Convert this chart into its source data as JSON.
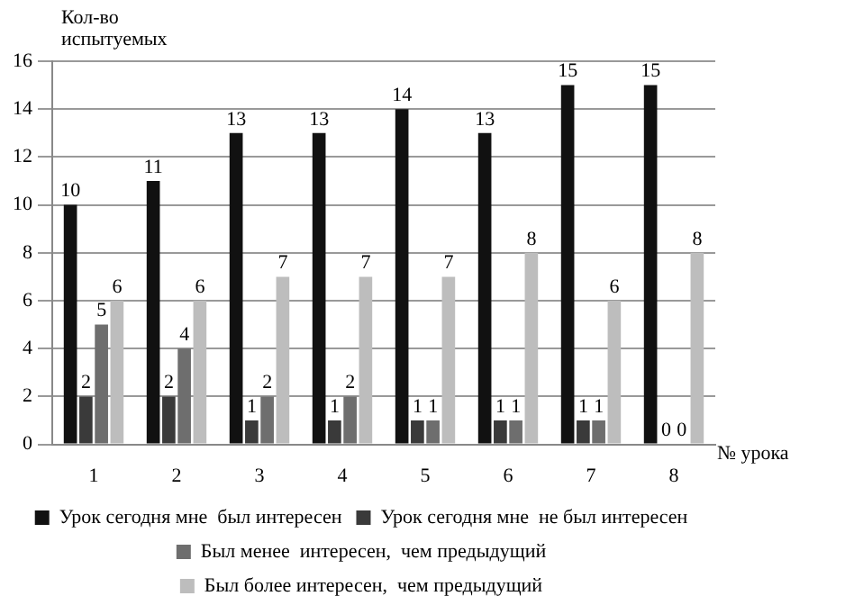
{
  "chart_data": {
    "type": "bar",
    "ylabel": "Кол-во испытуемых",
    "xlabel": "№ урока",
    "categories": [
      "1",
      "2",
      "3",
      "4",
      "5",
      "6",
      "7",
      "8"
    ],
    "series": [
      {
        "name": "Урок сегодня мне  был интересен",
        "color": "#111111",
        "values": [
          10,
          11,
          13,
          13,
          14,
          13,
          15,
          15
        ]
      },
      {
        "name": "Урок сегодня мне  не был интересен",
        "color": "#3a3a3a",
        "values": [
          2,
          2,
          1,
          1,
          1,
          1,
          1,
          0
        ]
      },
      {
        "name": "Был менее  интересен,  чем предыдущий",
        "color": "#6e6e6e",
        "values": [
          5,
          4,
          2,
          2,
          1,
          1,
          1,
          0
        ]
      },
      {
        "name": "Был более интересен,  чем предыдущий",
        "color": "#bdbdbd",
        "values": [
          6,
          6,
          7,
          7,
          7,
          8,
          6,
          8
        ]
      }
    ],
    "ylim": [
      0,
      16
    ],
    "yticks": [
      0,
      2,
      4,
      6,
      8,
      10,
      12,
      14,
      16
    ],
    "grid": "y",
    "legend": "bottom",
    "data_labels": true
  }
}
